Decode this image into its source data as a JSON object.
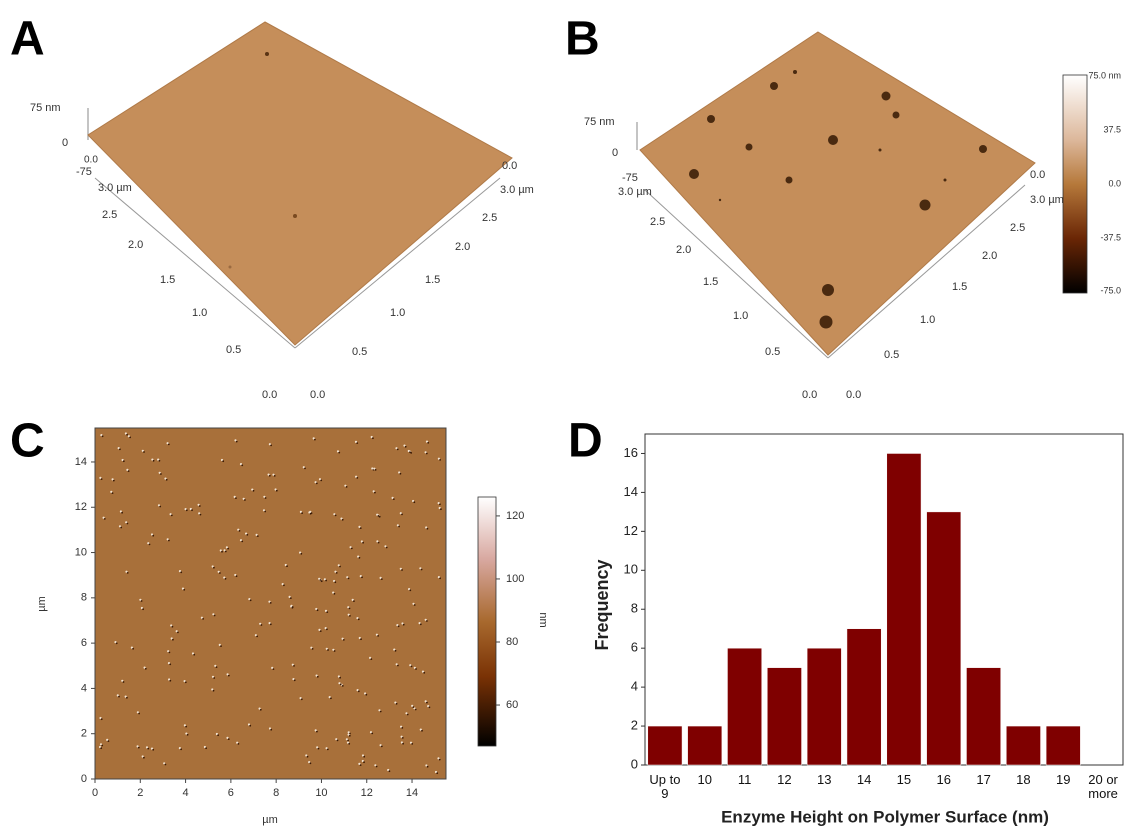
{
  "panels": [
    {
      "letter": "A",
      "z_axis": [
        "75 nm",
        "0",
        "-75"
      ],
      "corner": "0.0",
      "left_axis": [
        "3.0 µm",
        "2.5",
        "2.0",
        "1.5",
        "1.0",
        "0.5",
        "0.0"
      ],
      "right_axis": [
        "0.0",
        "3.0 µm",
        "2.5",
        "2.0",
        "1.5",
        "1.0",
        "0.5",
        "0.0"
      ]
    },
    {
      "letter": "B",
      "z_axis": [
        "75 nm",
        "0",
        "-75"
      ],
      "left_axis": [
        "3.0 µm",
        "2.5",
        "2.0",
        "1.5",
        "1.0",
        "0.5",
        "0.0"
      ],
      "right_axis": [
        "0.0",
        "3.0 µm",
        "2.5",
        "2.0",
        "1.5",
        "1.0",
        "0.5",
        "0.0"
      ],
      "colorbar": [
        "75.0 nm",
        "37.5",
        "0.0",
        "-37.5",
        "-75.0"
      ]
    }
  ],
  "chart_data": [
    {
      "type": "image",
      "panel": "C",
      "xlabel": "µm",
      "ylabel": "µm",
      "xlim": [
        0,
        15.5
      ],
      "ylim": [
        0,
        15.5
      ],
      "xticks": [
        0,
        2,
        4,
        6,
        8,
        10,
        12,
        14
      ],
      "yticks": [
        0,
        2,
        4,
        6,
        8,
        10,
        12,
        14
      ],
      "colorbar": {
        "label": "nm",
        "lim": [
          47,
          126
        ],
        "ticks": [
          60,
          80,
          100,
          120
        ]
      }
    },
    {
      "type": "bar",
      "panel": "D",
      "xlabel": "Enzyme Height on Polymer Surface (nm)",
      "ylabel": "Frequency",
      "categories": [
        "Up to 9",
        "10",
        "11",
        "12",
        "13",
        "14",
        "15",
        "16",
        "17",
        "18",
        "19",
        "20 or more"
      ],
      "values": [
        2,
        2,
        6,
        5,
        6,
        7,
        16,
        13,
        5,
        2,
        2,
        0
      ],
      "color": "#7f0000",
      "ylim": [
        0,
        17
      ],
      "yticks": [
        0,
        2,
        4,
        6,
        8,
        10,
        12,
        14,
        16
      ]
    }
  ]
}
